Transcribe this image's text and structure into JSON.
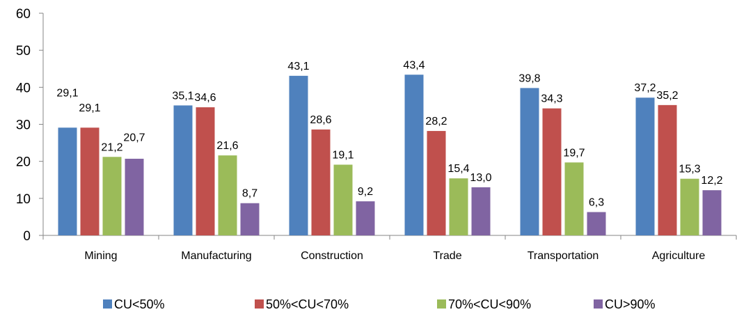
{
  "chart_data": {
    "type": "bar",
    "categories": [
      "Mining",
      "Manufacturing",
      "Construction",
      "Trade",
      "Transportation",
      "Agriculture"
    ],
    "series": [
      {
        "name": "CU<50%",
        "color": "#4F81BD",
        "values": [
          29.1,
          35.1,
          43.1,
          43.4,
          39.8,
          37.2
        ],
        "labels": [
          "29,1",
          "35,1",
          "43,1",
          "43,4",
          "39,8",
          "37,2"
        ]
      },
      {
        "name": "50%<CU<70%",
        "color": "#C0504D",
        "values": [
          29.1,
          34.6,
          28.6,
          28.2,
          34.3,
          35.2
        ],
        "labels": [
          "29,1",
          "34,6",
          "28,6",
          "28,2",
          "34,3",
          "35,2"
        ]
      },
      {
        "name": "70%<CU<90%",
        "color": "#9BBB59",
        "values": [
          21.2,
          21.6,
          19.1,
          15.4,
          19.7,
          15.3
        ],
        "labels": [
          "21,2",
          "21,6",
          "19,1",
          "15,4",
          "19,7",
          "15,3"
        ]
      },
      {
        "name": "CU>90%",
        "color": "#8064A2",
        "values": [
          20.7,
          8.7,
          9.2,
          13.0,
          6.3,
          12.2
        ],
        "labels": [
          "20,7",
          "8,7",
          "9,2",
          "13,0",
          "6,3",
          "12,2"
        ]
      }
    ],
    "title": "",
    "xlabel": "",
    "ylabel": "",
    "ylim": [
      0,
      60
    ],
    "yticks": [
      0,
      10,
      20,
      30,
      40,
      50,
      60
    ],
    "grid": false,
    "legend_position": "bottom"
  }
}
